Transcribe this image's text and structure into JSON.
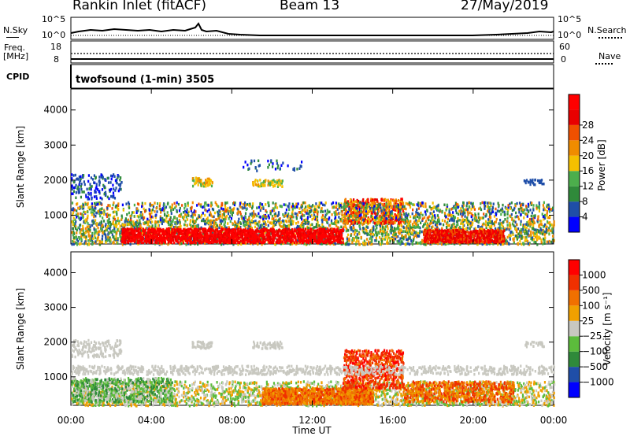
{
  "header": {
    "station": "Rankin Inlet (fitACF)",
    "beam": "Beam 13",
    "date": "27/May/2019"
  },
  "aux": {
    "nsky_label": "N.Sky",
    "nsearch_label": "N.Search",
    "freq_label_1": "Freq.",
    "freq_label_2": "[MHz]",
    "nave_label": "Nave",
    "cpid_label": "CPID",
    "cpid_value": "twofsound (1-min) 3505",
    "noise_ticks_left": [
      "10^5",
      "10^0"
    ],
    "noise_ticks_right": [
      "10^5",
      "10^0"
    ],
    "freq_ticks_left": [
      "18",
      "8"
    ],
    "nave_ticks_right": [
      "60",
      "0"
    ]
  },
  "colors": {
    "power": [
      "#0000ff",
      "#1f4ea8",
      "#2f8a3a",
      "#4cae4c",
      "#f5c000",
      "#f08c00",
      "#f05000",
      "#e80000",
      "#ff0000"
    ],
    "velocity": [
      "#ff0000",
      "#f03000",
      "#f07000",
      "#f0a000",
      "#c8c8c0",
      "#5cbc3c",
      "#2f8a3a",
      "#1f4ea8",
      "#0000ff"
    ]
  },
  "chart_data": [
    {
      "type": "heatmap",
      "panel": "power",
      "ylabel": "Slant Range [km]",
      "ylim": [
        180,
        4600
      ],
      "yticks": [
        1000,
        2000,
        3000,
        4000
      ],
      "xlim_hours": [
        0,
        24
      ],
      "colorbar_label": "Power [dB]",
      "colorbar_ticks": [
        "4",
        "8",
        "12",
        "16",
        "20",
        "24",
        "28"
      ],
      "colorbar_range": [
        0,
        30
      ]
    },
    {
      "type": "heatmap",
      "panel": "velocity",
      "ylabel": "Slant Range [km]",
      "ylim": [
        180,
        4600
      ],
      "yticks": [
        1000,
        2000,
        3000,
        4000
      ],
      "xlim_hours": [
        0,
        24
      ],
      "colorbar_label": "Velocity [m s⁻¹]",
      "colorbar_ticks": [
        "1000",
        "500",
        "100",
        "25",
        "−25",
        "−100",
        "−500",
        "−1000"
      ]
    }
  ],
  "xaxis": {
    "ticks": [
      "00:00",
      "04:00",
      "08:00",
      "12:00",
      "16:00",
      "20:00",
      "00:00"
    ],
    "label": "Time UT"
  }
}
